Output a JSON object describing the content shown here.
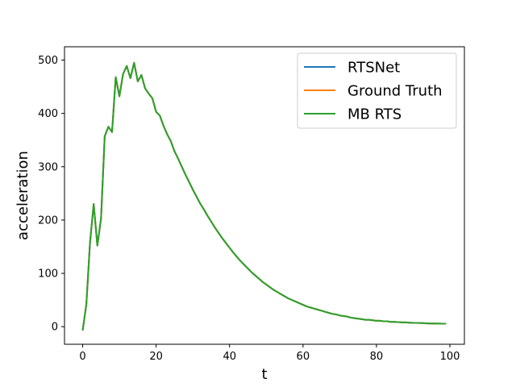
{
  "chart_data": {
    "type": "line",
    "title": "",
    "xlabel": "t",
    "ylabel": "acceleration",
    "xlim": [
      -4.95,
      103.95
    ],
    "ylim": [
      -33,
      525
    ],
    "xticks": [
      0,
      20,
      40,
      60,
      80,
      100
    ],
    "yticks": [
      0,
      100,
      200,
      300,
      400,
      500
    ],
    "grid": false,
    "legend_position": "top-right",
    "series": [
      {
        "name": "RTSNet",
        "color": "#1f77b4"
      },
      {
        "name": "Ground Truth",
        "color": "#ff7f0e"
      },
      {
        "name": "MB RTS",
        "color": "#2ca02c"
      }
    ],
    "x": [
      0,
      1,
      2,
      3,
      4,
      5,
      6,
      7,
      8,
      9,
      10,
      11,
      12,
      13,
      14,
      15,
      16,
      17,
      18,
      19,
      20,
      21,
      22,
      23,
      24,
      25,
      26,
      27,
      28,
      29,
      30,
      31,
      32,
      33,
      34,
      35,
      36,
      37,
      38,
      39,
      40,
      41,
      42,
      43,
      44,
      45,
      46,
      47,
      48,
      49,
      50,
      51,
      52,
      53,
      54,
      55,
      56,
      57,
      58,
      59,
      60,
      61,
      62,
      63,
      64,
      65,
      66,
      67,
      68,
      69,
      70,
      71,
      72,
      73,
      74,
      75,
      76,
      77,
      78,
      79,
      80,
      81,
      82,
      83,
      84,
      85,
      86,
      87,
      88,
      89,
      90,
      91,
      92,
      93,
      94,
      95,
      96,
      97,
      98,
      99
    ],
    "y": [
      -7,
      42,
      158,
      230,
      152,
      203,
      357,
      375,
      365,
      468,
      432,
      474,
      489,
      466,
      495,
      460,
      472,
      447,
      437,
      428,
      403,
      396,
      377,
      361,
      348,
      329,
      315,
      300,
      285,
      271,
      257,
      244,
      231,
      220,
      208,
      197,
      186,
      176,
      166,
      157,
      148,
      139,
      131,
      123,
      116,
      109,
      102,
      96,
      90,
      84,
      79,
      74,
      69,
      65,
      61,
      57,
      53,
      50,
      47,
      44,
      41,
      38,
      36,
      34,
      32,
      30,
      28,
      26,
      24,
      23,
      21,
      20,
      19,
      17,
      16,
      15,
      14,
      13,
      13,
      12,
      11,
      11,
      10,
      10,
      9,
      9,
      8.5,
      8,
      8,
      7.5,
      7,
      7,
      6.8,
      6.5,
      6.2,
      6,
      6,
      5.8,
      5.6,
      5.5
    ]
  }
}
